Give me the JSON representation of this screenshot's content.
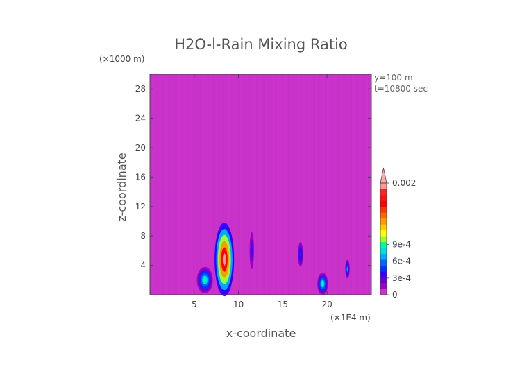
{
  "chart_data": {
    "type": "heatmap",
    "title": "H2O-l-Rain Mixing Ratio",
    "xlabel": "x-coordinate",
    "ylabel": "z-coordinate",
    "x_unit": "(×1E4 m)",
    "y_unit": "(×1000 m)",
    "xlim": [
      0,
      25
    ],
    "ylim": [
      0,
      30
    ],
    "x_ticks": [
      5,
      10,
      15,
      20
    ],
    "x_tick_labels": [
      "5",
      "10",
      "15",
      "20"
    ],
    "y_ticks": [
      4,
      8,
      12,
      16,
      20,
      24,
      28
    ],
    "y_tick_labels": [
      "4",
      "8",
      "12",
      "16",
      "20",
      "24",
      "28"
    ],
    "annotations": [
      "y=100 m",
      "t=10800 sec"
    ],
    "background_value": 0,
    "background_color": "#cc33cc",
    "colorbar": {
      "min": 0,
      "max": 0.002,
      "tick_values": [
        0,
        0.0003,
        0.0006,
        0.0009,
        0.002
      ],
      "tick_labels": [
        "0",
        "3e-4",
        "6e-4",
        "9e-4",
        "0.002"
      ],
      "levels": [
        {
          "color": "#cc33cc"
        },
        {
          "color": "#9900cc"
        },
        {
          "color": "#6600cc"
        },
        {
          "color": "#3300ff"
        },
        {
          "color": "#0033ff"
        },
        {
          "color": "#0066ff"
        },
        {
          "color": "#00aaff"
        },
        {
          "color": "#00dddd"
        },
        {
          "color": "#00ff99"
        },
        {
          "color": "#99ff33"
        },
        {
          "color": "#ffff00"
        },
        {
          "color": "#ffcc00"
        },
        {
          "color": "#ff9900"
        },
        {
          "color": "#ff6600"
        },
        {
          "color": "#ff3300"
        },
        {
          "color": "#ff0000"
        },
        {
          "color": "#ff1111"
        },
        {
          "color": "#ff2222"
        },
        {
          "color": "#ff9999"
        }
      ],
      "over_color": "#ffaaaa"
    },
    "features": [
      {
        "x": 6.2,
        "z": 2.0,
        "width": 1.8,
        "height": 3.6,
        "peak": 0.0009
      },
      {
        "x": 8.4,
        "z": 4.8,
        "width": 2.2,
        "height": 10.0,
        "peak": 0.002
      },
      {
        "x": 11.5,
        "z": 6.0,
        "width": 0.6,
        "height": 6.0,
        "peak": 0.0004
      },
      {
        "x": 17.0,
        "z": 5.5,
        "width": 0.7,
        "height": 4.0,
        "peak": 0.0005
      },
      {
        "x": 19.5,
        "z": 1.5,
        "width": 1.2,
        "height": 3.0,
        "peak": 0.0009
      },
      {
        "x": 22.3,
        "z": 3.5,
        "width": 0.5,
        "height": 2.5,
        "peak": 0.0007
      }
    ]
  }
}
